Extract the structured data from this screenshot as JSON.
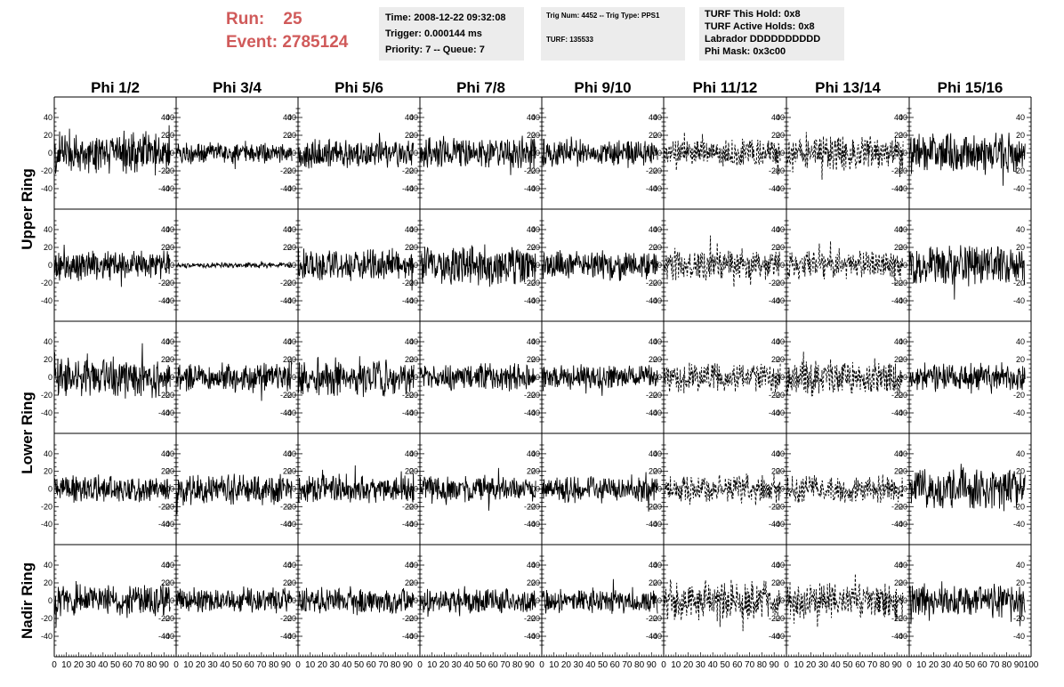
{
  "header": {
    "run_label": "Run:",
    "run_value": "25",
    "event_label": "Event:",
    "event_value": "2785124"
  },
  "info_boxes": {
    "time": "Time: 2008-12-22 09:32:08",
    "trigger": "Trigger: 0.000144 ms",
    "priority": "Priority: 7 -- Queue: 7",
    "trig_num": "Trig Num: 4452 -- Trig Type: PPS1",
    "turf": "TURF: 135533",
    "turf_hold": "TURF This Hold: 0x8",
    "turf_active": "TURF Active Holds: 0x8",
    "labrador": "Labrador DDDDDDDDDD",
    "phi_mask": "Phi Mask: 0x3c00"
  },
  "chart_data": {
    "type": "line",
    "columns": [
      "Phi 1/2",
      "Phi 3/4",
      "Phi 5/6",
      "Phi 7/8",
      "Phi 9/10",
      "Phi 11/12",
      "Phi 13/14",
      "Phi 15/16"
    ],
    "row_groups": [
      {
        "label": "Upper Ring",
        "rows": [
          0,
          1
        ]
      },
      {
        "label": "Lower Ring",
        "rows": [
          2,
          3
        ]
      },
      {
        "label": "Nadir Ring",
        "rows": [
          4
        ]
      }
    ],
    "y_ticks": [
      40,
      20,
      0,
      -20,
      -40
    ],
    "y_tick_labels": [
      "40",
      "20",
      "0",
      "-20",
      "-40"
    ],
    "ylim": [
      -50,
      50
    ],
    "xlim": [
      0,
      100
    ],
    "x_tick_labels": [
      "0",
      "10",
      "20",
      "30",
      "40",
      "50",
      "60",
      "70",
      "80",
      "90",
      "100"
    ],
    "amplitudes": [
      [
        18,
        9,
        13,
        14,
        12,
        12,
        15,
        17
      ],
      [
        13,
        2.5,
        14,
        17,
        12,
        14,
        12,
        18
      ],
      [
        17,
        13,
        16,
        12,
        11,
        13,
        16,
        12
      ],
      [
        12,
        14,
        13,
        12,
        12,
        13,
        12,
        18
      ],
      [
        14,
        11,
        12,
        11,
        11,
        17,
        15,
        14
      ]
    ],
    "dashed": [
      [
        false,
        false,
        false,
        false,
        false,
        true,
        true,
        false
      ],
      [
        false,
        false,
        false,
        false,
        false,
        true,
        true,
        false
      ],
      [
        false,
        false,
        false,
        false,
        false,
        true,
        true,
        false
      ],
      [
        false,
        false,
        false,
        false,
        false,
        true,
        true,
        false
      ],
      [
        false,
        false,
        false,
        false,
        false,
        true,
        true,
        false
      ]
    ],
    "samples": 260
  }
}
